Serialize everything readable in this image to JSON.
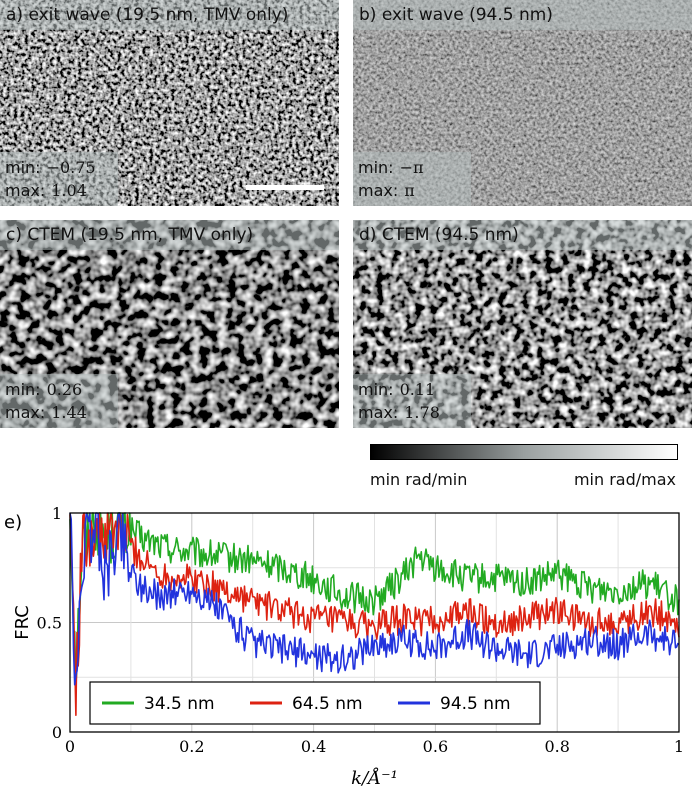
{
  "panels": [
    {
      "title": "a) exit wave (19.5 nm, TMV only)",
      "min_label": "min:",
      "min_value": "−0.75",
      "max_label": "max:",
      "max_value": "1.04",
      "scalebar": true
    },
    {
      "title": "b) exit wave (94.5 nm)",
      "min_label": "min:",
      "min_value": "−π",
      "max_label": "max:",
      "max_value": "π",
      "scalebar": false
    },
    {
      "title": "c) CTEM (19.5 nm, TMV only)",
      "min_label": "min:",
      "min_value": "0.26",
      "max_label": "max:",
      "max_value": "1.44",
      "scalebar": false
    },
    {
      "title": "d) CTEM (94.5 nm)",
      "min_label": "min:",
      "min_value": "0.11",
      "max_label": "max:",
      "max_value": "1.78",
      "scalebar": false
    }
  ],
  "colorbar": {
    "left_label": "min rad/min",
    "right_label": "min rad/max",
    "colors": [
      "#000000",
      "#9aa0a0",
      "#ffffff"
    ]
  },
  "chart_data": {
    "type": "line",
    "panel_label": "e)",
    "xlabel": "k/Å⁻¹",
    "ylabel": "FRC",
    "xlim": [
      0,
      1
    ],
    "ylim": [
      0,
      1
    ],
    "xticks": [
      "0",
      "0.2",
      "0.4",
      "0.6",
      "0.8",
      "1"
    ],
    "yticks": [
      "0",
      "0.5",
      "1"
    ],
    "grid": true,
    "legend_position": "bottom-left",
    "series": [
      {
        "name": "34.5 nm",
        "color": "#22aa22",
        "x": [
          0,
          0.01,
          0.02,
          0.03,
          0.04,
          0.05,
          0.06,
          0.08,
          0.1,
          0.12,
          0.15,
          0.2,
          0.25,
          0.3,
          0.35,
          0.4,
          0.45,
          0.5,
          0.55,
          0.57,
          0.6,
          0.65,
          0.7,
          0.75,
          0.8,
          0.85,
          0.9,
          0.95,
          1.0
        ],
        "y": [
          1.0,
          0.3,
          0.85,
          0.9,
          0.98,
          0.95,
          0.9,
          0.95,
          0.92,
          0.88,
          0.85,
          0.82,
          0.8,
          0.78,
          0.75,
          0.7,
          0.62,
          0.6,
          0.72,
          0.8,
          0.75,
          0.7,
          0.7,
          0.68,
          0.72,
          0.66,
          0.65,
          0.68,
          0.6
        ]
      },
      {
        "name": "64.5 nm",
        "color": "#dd2211",
        "x": [
          0,
          0.01,
          0.02,
          0.03,
          0.04,
          0.05,
          0.06,
          0.08,
          0.1,
          0.12,
          0.15,
          0.2,
          0.25,
          0.3,
          0.35,
          0.4,
          0.45,
          0.5,
          0.55,
          0.6,
          0.65,
          0.7,
          0.75,
          0.8,
          0.85,
          0.9,
          0.95,
          1.0
        ],
        "y": [
          1.0,
          0.2,
          0.85,
          0.9,
          0.95,
          0.88,
          0.9,
          0.92,
          0.85,
          0.78,
          0.72,
          0.7,
          0.65,
          0.6,
          0.55,
          0.52,
          0.5,
          0.48,
          0.52,
          0.5,
          0.55,
          0.5,
          0.52,
          0.55,
          0.5,
          0.5,
          0.55,
          0.5
        ]
      },
      {
        "name": "94.5 nm",
        "color": "#2233dd",
        "x": [
          0,
          0.01,
          0.02,
          0.03,
          0.04,
          0.05,
          0.06,
          0.08,
          0.1,
          0.12,
          0.15,
          0.2,
          0.25,
          0.3,
          0.35,
          0.4,
          0.45,
          0.5,
          0.55,
          0.6,
          0.65,
          0.7,
          0.75,
          0.8,
          0.85,
          0.9,
          0.95,
          1.0
        ],
        "y": [
          1.0,
          0.1,
          0.8,
          0.9,
          0.95,
          0.85,
          0.7,
          0.95,
          0.75,
          0.65,
          0.62,
          0.65,
          0.55,
          0.4,
          0.38,
          0.35,
          0.33,
          0.4,
          0.42,
          0.38,
          0.45,
          0.38,
          0.35,
          0.38,
          0.42,
          0.4,
          0.45,
          0.4
        ]
      }
    ]
  }
}
